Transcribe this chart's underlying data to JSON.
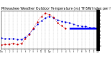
{
  "title": "Milwaukee Weather Outdoor Temperature (vs) THSW Index per Hour (Last 24 Hours)",
  "title_fontsize": 3.5,
  "bg_color": "#ffffff",
  "plot_bg": "#ffffff",
  "grid_color": "#999999",
  "xlim": [
    0,
    24
  ],
  "ylim": [
    -20,
    85
  ],
  "right_ticks": [
    -10,
    0,
    10,
    20,
    30,
    40,
    50,
    60,
    70,
    80
  ],
  "hours": [
    0,
    1,
    2,
    3,
    4,
    5,
    6,
    7,
    8,
    9,
    10,
    11,
    12,
    13,
    14,
    15,
    16,
    17,
    18,
    19,
    20,
    21,
    22,
    23,
    24
  ],
  "temp": [
    10,
    9,
    8,
    8,
    7,
    7,
    12,
    22,
    35,
    48,
    58,
    65,
    70,
    66,
    60,
    57,
    55,
    52,
    48,
    45,
    43,
    42,
    40,
    39,
    38
  ],
  "thsw": [
    -8,
    -7,
    -6,
    -5,
    -7,
    -5,
    8,
    20,
    38,
    55,
    70,
    78,
    75,
    68,
    52,
    44,
    38,
    null,
    null,
    null,
    null,
    null,
    null,
    null,
    null
  ],
  "temp_color": "#0000dd",
  "thsw_color": "#cc0000",
  "flat_blue_start": 17,
  "flat_blue_end": 24,
  "flat_blue_val": 38,
  "flat_blue_color": "#0000ff",
  "xtick_labels": [
    "12a",
    "1",
    "2",
    "3",
    "4",
    "5",
    "6",
    "7",
    "8",
    "9",
    "10",
    "11",
    "12p",
    "1",
    "2",
    "3",
    "4",
    "5",
    "6",
    "7",
    "8",
    "9",
    "10",
    "11",
    "12a"
  ],
  "vgrid_positions": [
    0,
    1,
    2,
    3,
    4,
    5,
    6,
    7,
    8,
    9,
    10,
    11,
    12,
    13,
    14,
    15,
    16,
    17,
    18,
    19,
    20,
    21,
    22,
    23,
    24
  ]
}
